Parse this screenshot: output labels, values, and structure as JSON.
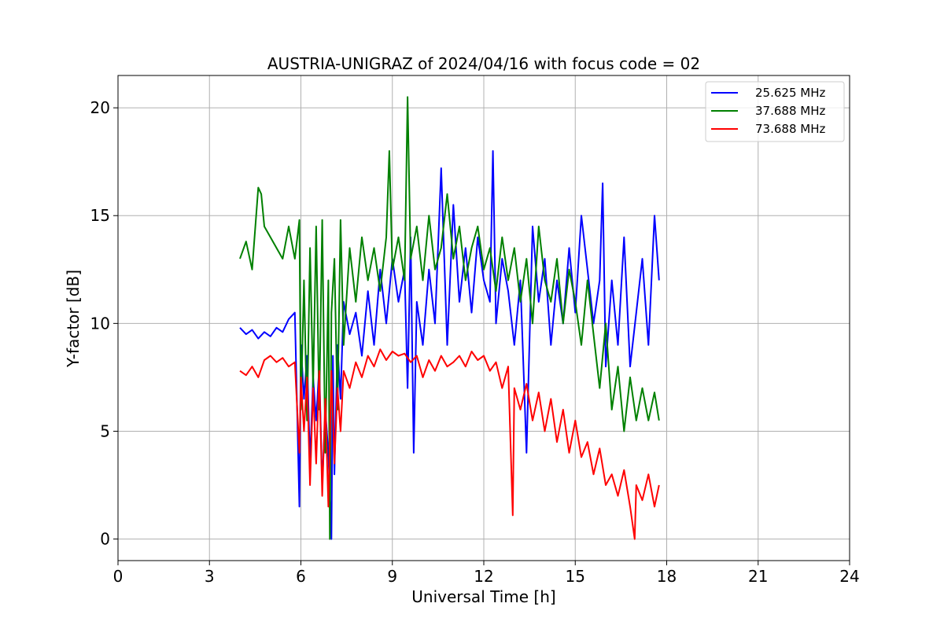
{
  "chart_data": {
    "type": "line",
    "title": "AUSTRIA-UNIGRAZ of 2024/04/16 with focus code = 02",
    "xlabel": "Universal Time [h]",
    "ylabel": "Y-factor [dB]",
    "xlim": [
      0,
      24
    ],
    "ylim": [
      -1,
      21.5
    ],
    "xticks": [
      0,
      3,
      6,
      9,
      12,
      15,
      18,
      21,
      24
    ],
    "yticks": [
      0,
      5,
      10,
      15,
      20
    ],
    "grid": true,
    "legend_position": "top-right",
    "series": [
      {
        "name": "25.625 MHz",
        "color": "#0000ff",
        "x": [
          4.0,
          4.2,
          4.4,
          4.6,
          4.8,
          5.0,
          5.2,
          5.4,
          5.6,
          5.8,
          5.95,
          6.0,
          6.1,
          6.2,
          6.3,
          6.4,
          6.5,
          6.6,
          6.7,
          6.8,
          6.9,
          7.0,
          7.05,
          7.1,
          7.2,
          7.3,
          7.4,
          7.6,
          7.8,
          8.0,
          8.2,
          8.4,
          8.6,
          8.8,
          9.0,
          9.2,
          9.4,
          9.5,
          9.6,
          9.7,
          9.8,
          10.0,
          10.2,
          10.4,
          10.6,
          10.8,
          11.0,
          11.2,
          11.4,
          11.6,
          11.8,
          12.0,
          12.2,
          12.3,
          12.4,
          12.6,
          12.8,
          13.0,
          13.2,
          13.4,
          13.6,
          13.8,
          14.0,
          14.2,
          14.4,
          14.6,
          14.8,
          15.0,
          15.2,
          15.4,
          15.6,
          15.8,
          15.9,
          16.0,
          16.2,
          16.4,
          16.6,
          16.8,
          17.0,
          17.2,
          17.4,
          17.6,
          17.75
        ],
        "y": [
          9.8,
          9.5,
          9.7,
          9.3,
          9.6,
          9.4,
          9.8,
          9.6,
          10.2,
          10.5,
          1.5,
          9.0,
          6.5,
          8.5,
          3.5,
          7.5,
          5.5,
          8.0,
          2.5,
          6.0,
          4.0,
          0.0,
          8.5,
          3.0,
          9.0,
          6.5,
          11.0,
          9.5,
          10.5,
          8.5,
          11.5,
          9.0,
          12.5,
          10.0,
          13.0,
          11.0,
          12.5,
          7.0,
          14.0,
          4.0,
          11.0,
          9.0,
          12.5,
          10.0,
          17.2,
          9.0,
          15.5,
          11.0,
          13.5,
          10.5,
          14.0,
          12.0,
          11.0,
          18.0,
          10.0,
          13.0,
          11.5,
          9.0,
          12.0,
          4.0,
          14.5,
          11.0,
          13.0,
          9.0,
          12.0,
          10.0,
          13.5,
          10.5,
          15.0,
          12.5,
          10.0,
          12.0,
          16.5,
          8.0,
          12.0,
          9.0,
          14.0,
          8.0,
          10.5,
          13.0,
          9.0,
          15.0,
          12.0
        ]
      },
      {
        "name": "37.688 MHz",
        "color": "#008000",
        "x": [
          4.0,
          4.2,
          4.4,
          4.6,
          4.7,
          4.8,
          5.0,
          5.2,
          5.4,
          5.6,
          5.8,
          5.95,
          6.0,
          6.1,
          6.2,
          6.3,
          6.4,
          6.5,
          6.6,
          6.7,
          6.8,
          6.9,
          6.95,
          7.0,
          7.1,
          7.2,
          7.3,
          7.4,
          7.6,
          7.8,
          8.0,
          8.2,
          8.4,
          8.6,
          8.8,
          8.9,
          9.0,
          9.2,
          9.4,
          9.5,
          9.6,
          9.8,
          10.0,
          10.2,
          10.4,
          10.6,
          10.8,
          11.0,
          11.2,
          11.4,
          11.6,
          11.8,
          12.0,
          12.2,
          12.4,
          12.6,
          12.8,
          13.0,
          13.2,
          13.4,
          13.6,
          13.8,
          14.0,
          14.2,
          14.4,
          14.6,
          14.8,
          15.0,
          15.2,
          15.4,
          15.6,
          15.8,
          16.0,
          16.2,
          16.4,
          16.6,
          16.8,
          17.0,
          17.2,
          17.4,
          17.6,
          17.75
        ],
        "y": [
          13.0,
          13.8,
          12.5,
          16.3,
          16.0,
          14.5,
          14.0,
          13.5,
          13.0,
          14.5,
          13.0,
          14.8,
          6.0,
          12.0,
          5.5,
          13.5,
          7.0,
          14.5,
          6.0,
          14.8,
          4.0,
          12.0,
          0.0,
          10.5,
          13.0,
          6.0,
          14.8,
          9.0,
          13.5,
          11.0,
          14.0,
          12.0,
          13.5,
          11.5,
          14.0,
          18.0,
          12.5,
          14.0,
          12.0,
          20.5,
          13.0,
          14.5,
          12.0,
          15.0,
          12.5,
          13.5,
          16.0,
          13.0,
          14.5,
          12.0,
          13.5,
          14.5,
          12.5,
          13.5,
          11.5,
          14.0,
          12.0,
          13.5,
          11.0,
          13.0,
          10.0,
          14.5,
          12.0,
          11.0,
          13.0,
          10.0,
          12.5,
          11.0,
          9.0,
          12.0,
          9.5,
          7.0,
          10.0,
          6.0,
          8.0,
          5.0,
          7.5,
          5.5,
          7.0,
          5.5,
          6.8,
          5.5
        ]
      },
      {
        "name": "73.688 MHz",
        "color": "#ff0000",
        "x": [
          4.0,
          4.2,
          4.4,
          4.6,
          4.8,
          5.0,
          5.2,
          5.4,
          5.6,
          5.8,
          5.95,
          6.0,
          6.1,
          6.2,
          6.3,
          6.4,
          6.5,
          6.6,
          6.7,
          6.8,
          6.9,
          7.0,
          7.1,
          7.2,
          7.3,
          7.4,
          7.6,
          7.8,
          8.0,
          8.2,
          8.4,
          8.6,
          8.8,
          9.0,
          9.2,
          9.4,
          9.6,
          9.8,
          10.0,
          10.2,
          10.4,
          10.6,
          10.8,
          11.0,
          11.2,
          11.4,
          11.6,
          11.8,
          12.0,
          12.2,
          12.4,
          12.6,
          12.8,
          12.95,
          13.0,
          13.2,
          13.4,
          13.6,
          13.8,
          14.0,
          14.2,
          14.4,
          14.6,
          14.8,
          15.0,
          15.2,
          15.4,
          15.6,
          15.8,
          16.0,
          16.2,
          16.4,
          16.6,
          16.8,
          16.95,
          17.0,
          17.2,
          17.4,
          17.6,
          17.75
        ],
        "y": [
          7.8,
          7.6,
          8.0,
          7.5,
          8.3,
          8.5,
          8.2,
          8.4,
          8.0,
          8.2,
          4.0,
          7.5,
          5.0,
          7.5,
          2.5,
          7.0,
          3.5,
          7.8,
          2.0,
          6.5,
          1.5,
          7.8,
          3.5,
          7.0,
          5.0,
          7.8,
          7.0,
          8.2,
          7.5,
          8.5,
          8.0,
          8.8,
          8.3,
          8.7,
          8.5,
          8.6,
          8.2,
          8.5,
          7.5,
          8.3,
          7.8,
          8.5,
          8.0,
          8.2,
          8.5,
          8.0,
          8.7,
          8.3,
          8.5,
          7.8,
          8.2,
          7.0,
          8.0,
          1.1,
          7.0,
          6.0,
          7.2,
          5.5,
          6.8,
          5.0,
          6.5,
          4.5,
          6.0,
          4.0,
          5.5,
          3.8,
          4.5,
          3.0,
          4.2,
          2.5,
          3.0,
          2.0,
          3.2,
          1.5,
          0.0,
          2.5,
          1.8,
          3.0,
          1.5,
          2.5
        ]
      }
    ]
  }
}
